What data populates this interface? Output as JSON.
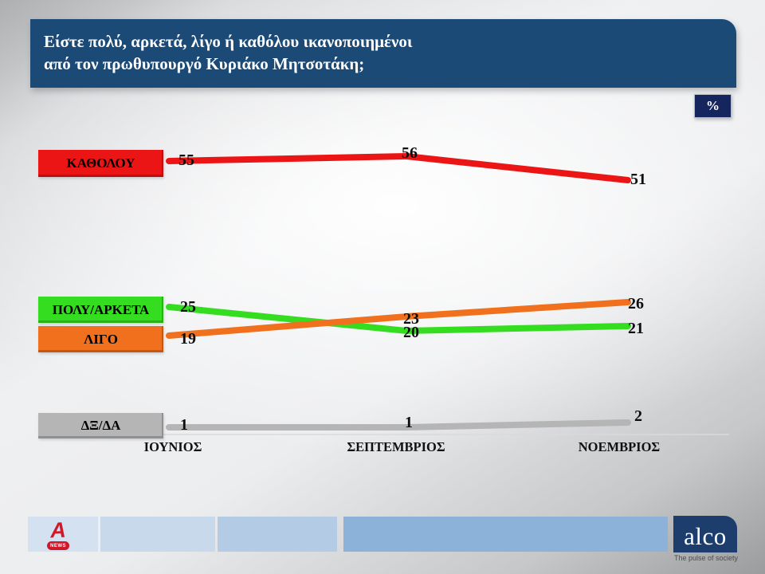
{
  "slide": {
    "title_line1": "Είστε πολύ, αρκετά, λίγο ή καθόλου ικανοποιημένοι",
    "title_line2": "από τον πρωθυπουργό Κυριάκο Μητσοτάκη;",
    "unit_badge": "%"
  },
  "chart_data": {
    "type": "line",
    "title": "Είστε πολύ, αρκετά, λίγο ή καθόλου ικανοποιημένοι από τον πρωθυπουργό Κυριάκο Μητσοτάκη;",
    "unit": "%",
    "categories": [
      "ΙΟΥΝΙΟΣ",
      "ΣΕΠΤΕΜΒΡΙΟΣ",
      "ΝΟΕΜΒΡΙΟΣ"
    ],
    "series": [
      {
        "name": "ΚΑΘΟΛΟΥ",
        "color": "#ec1515",
        "values": [
          55,
          56,
          51
        ]
      },
      {
        "name": "ΠΟΛΥ/ΑΡΚΕΤΑ",
        "color": "#35dd20",
        "values": [
          25,
          20,
          21
        ]
      },
      {
        "name": "ΛΙΓΟ",
        "color": "#f0701d",
        "values": [
          19,
          23,
          26
        ]
      },
      {
        "name": "ΔΞ/ΔΑ",
        "color": "#b5b5b5",
        "values": [
          1,
          1,
          2
        ]
      }
    ],
    "ylim": [
      0,
      60
    ],
    "grid": false,
    "legend_position": "row-labels-left",
    "value_labels_shown": true
  },
  "footer": {
    "bar_colors": [
      "#d3e1f0",
      "#c9d9ec",
      "#b3cbe4",
      "#8db2d9"
    ],
    "alpha_letter": "A",
    "alpha_badge_text": "NEWS",
    "alco_label": "alco",
    "alco_tagline": "The pulse of society"
  }
}
